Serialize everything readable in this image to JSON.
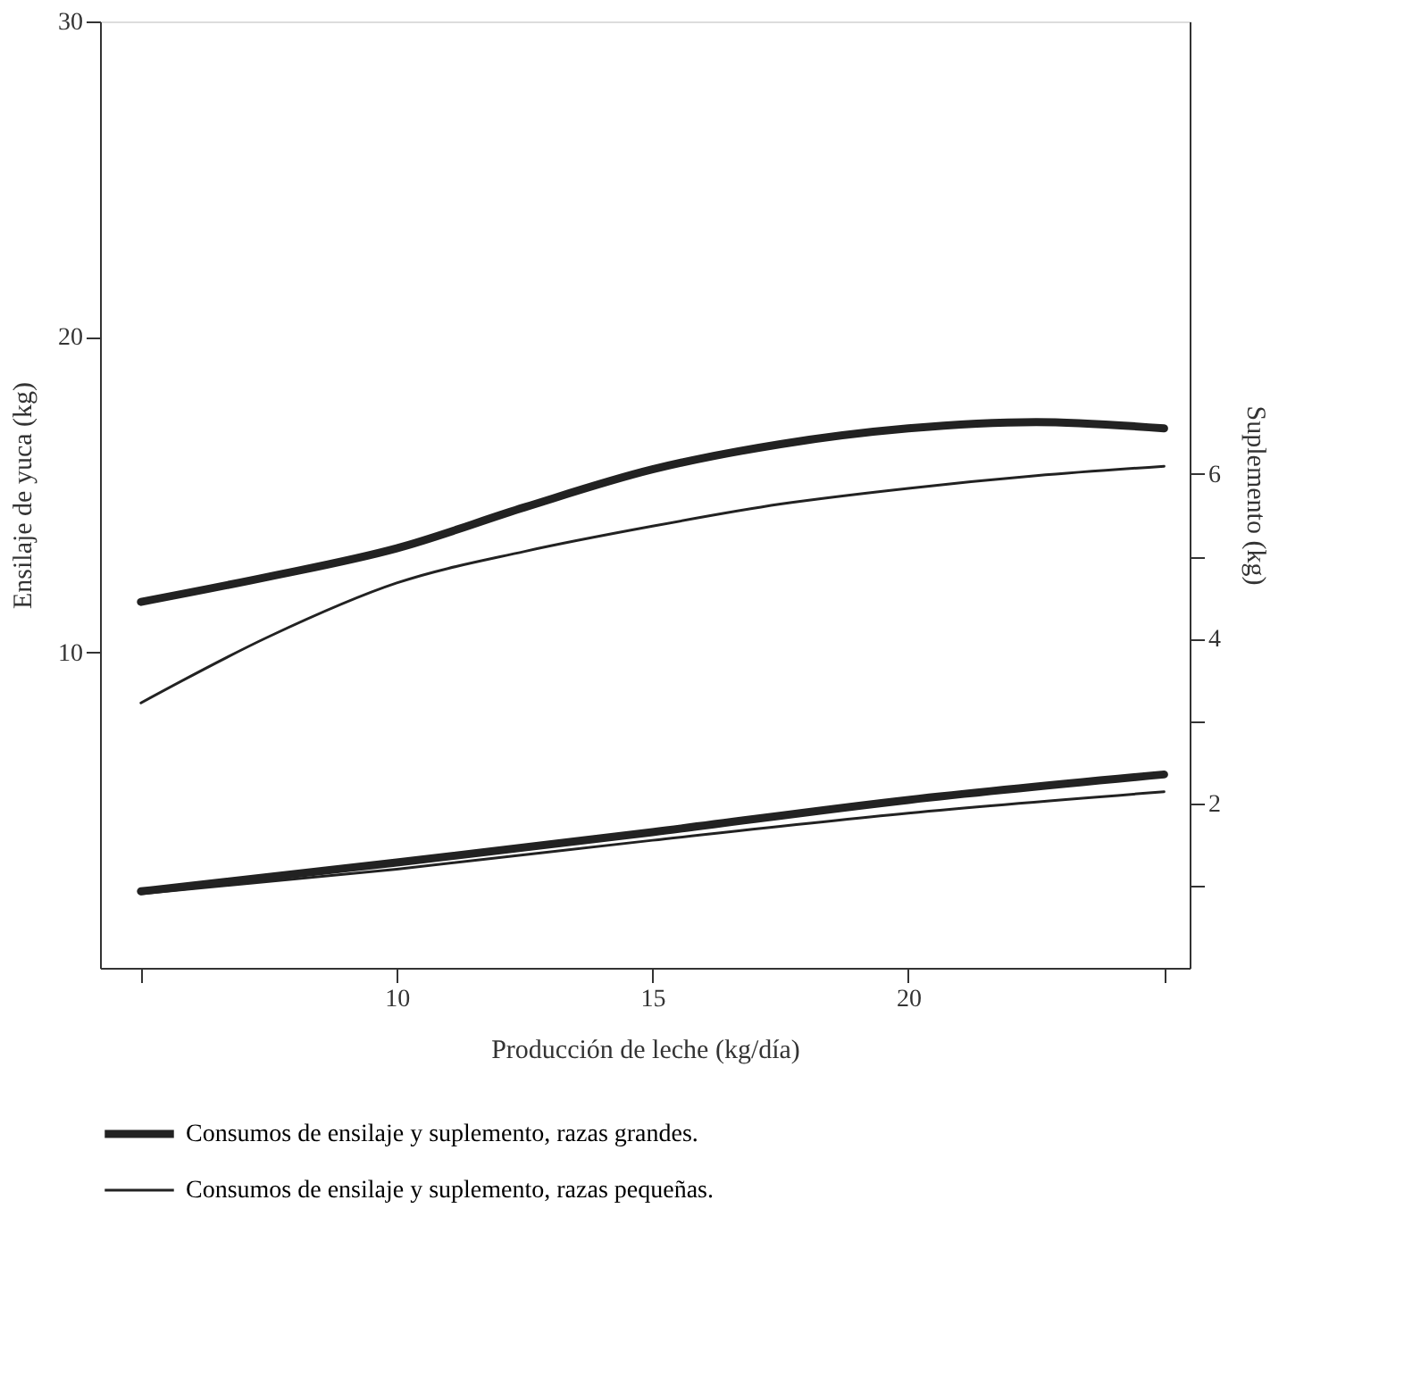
{
  "chart_data": {
    "type": "line",
    "xlabel": "Producción de leche (kg/día)",
    "ylabel": "Ensilaje de yuca (kg)",
    "y2label": "Suplemento (kg)",
    "xlim": [
      4.2,
      25.5
    ],
    "xticks": [
      {
        "value": 5,
        "label": null
      },
      10,
      15,
      20,
      {
        "value": 25,
        "label": null
      }
    ],
    "ylim": [
      0,
      30
    ],
    "yticks": [
      10,
      20,
      30
    ],
    "y2lim": [
      0,
      11.5
    ],
    "y2ticks": [
      {
        "value": 1,
        "label": null
      },
      2,
      {
        "value": 3,
        "label": null
      },
      4,
      {
        "value": 5,
        "label": null
      },
      6
    ],
    "grid": false,
    "legend": "bottom",
    "marker": "none",
    "line_style": "solid",
    "series": [
      {
        "name": "Consumos de ensilaje y suplemento, razas grandes.",
        "color": "#222222",
        "x": [
          5,
          7.5,
          10,
          12.5,
          15,
          17.5,
          20,
          22.5,
          25
        ],
        "values": [
          11.6,
          12.4,
          13.3,
          14.6,
          15.8,
          16.6,
          17.1,
          17.3,
          17.1
        ]
      },
      {
        "name": "Consumos de ensilaje y suplemento, razas pequeñas.",
        "color": "#222222",
        "x": [
          5,
          7.5,
          10,
          12.5,
          15,
          17.5,
          20,
          22.5,
          25
        ],
        "values": [
          8.4,
          10.5,
          12.2,
          13.2,
          14.0,
          14.7,
          15.2,
          15.6,
          15.9
        ]
      },
      {
        "color": "#222222",
        "axis": "y2",
        "x": [
          5,
          10,
          15,
          20,
          25
        ],
        "values": [
          0.93,
          1.28,
          1.65,
          2.04,
          2.35
        ]
      },
      {
        "color": "#222222",
        "axis": "y2",
        "x": [
          5,
          10,
          15,
          20,
          25
        ],
        "values": [
          0.9,
          1.2,
          1.55,
          1.88,
          2.14
        ]
      }
    ]
  }
}
